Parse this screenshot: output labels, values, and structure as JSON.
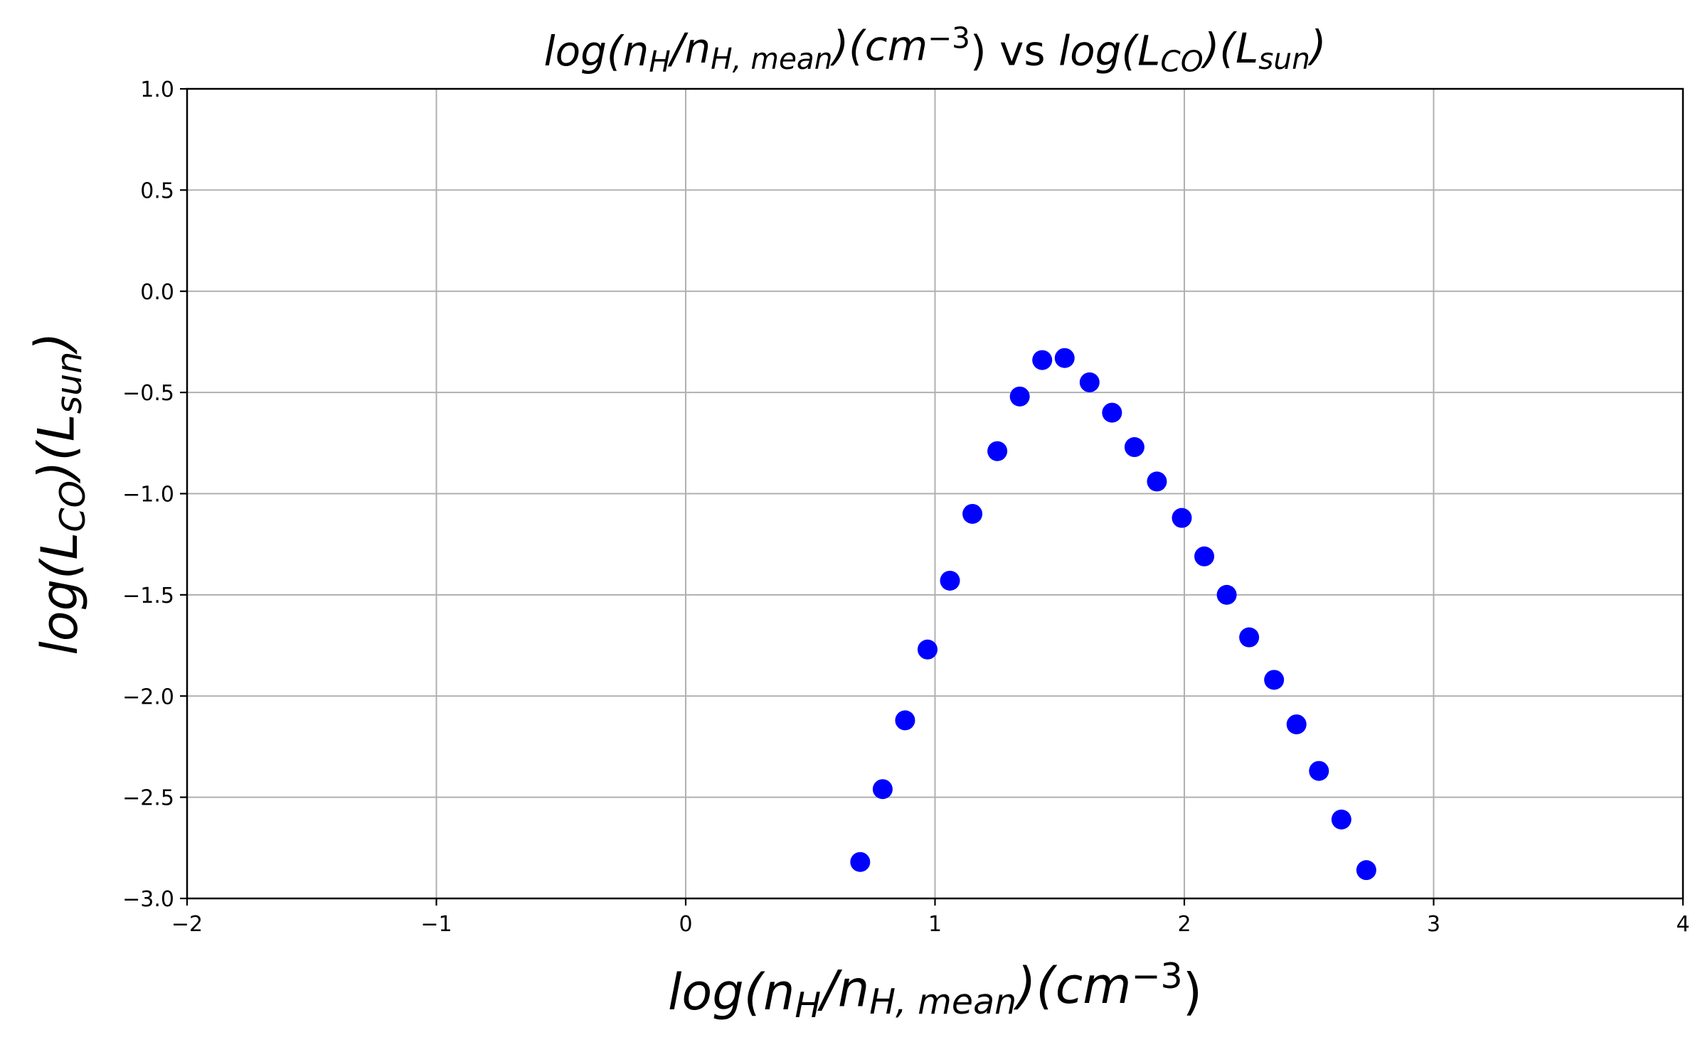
{
  "chart_data": {
    "type": "scatter",
    "title": {
      "left": [
        {
          "t": "log(n",
          "i": true
        },
        {
          "t": "H",
          "i": true,
          "sub": true
        },
        {
          "t": "/n",
          "i": true
        },
        {
          "t": "H, mean",
          "i": true,
          "sub": true
        },
        {
          "t": ")(cm",
          "i": true
        },
        {
          "t": "−3",
          "i": false,
          "sup": true
        },
        {
          "t": ")",
          "i": false
        }
      ],
      "middle": " vs ",
      "right": [
        {
          "t": "log(L",
          "i": true
        },
        {
          "t": "CO",
          "i": true,
          "sub": true
        },
        {
          "t": ")(L",
          "i": true
        },
        {
          "t": "sun",
          "i": true,
          "sub": true
        },
        {
          "t": ")",
          "i": true
        }
      ]
    },
    "xlabel": [
      {
        "t": "log(n",
        "i": true
      },
      {
        "t": "H",
        "i": true,
        "sub": true
      },
      {
        "t": "/n",
        "i": true
      },
      {
        "t": "H, mean",
        "i": true,
        "sub": true
      },
      {
        "t": ")(cm",
        "i": true
      },
      {
        "t": "−3",
        "i": false,
        "sup": true
      },
      {
        "t": ")",
        "i": false
      }
    ],
    "ylabel": [
      {
        "t": "log(L",
        "i": true
      },
      {
        "t": "CO",
        "i": true,
        "sub": true
      },
      {
        "t": ")(L",
        "i": true
      },
      {
        "t": "sun",
        "i": true,
        "sub": true
      },
      {
        "t": ")",
        "i": true
      }
    ],
    "xlim": [
      -2,
      4
    ],
    "ylim": [
      -3,
      1
    ],
    "xticks": [
      -2,
      -1,
      0,
      1,
      2,
      3,
      4
    ],
    "yticks": [
      -3.0,
      -2.5,
      -2.0,
      -1.5,
      -1.0,
      -0.5,
      0.0,
      0.5,
      1.0
    ],
    "xtick_labels": [
      "−2",
      "−1",
      "0",
      "1",
      "2",
      "3",
      "4"
    ],
    "ytick_labels": [
      "−3.0",
      "−2.5",
      "−2.0",
      "−1.5",
      "−1.0",
      "−0.5",
      "0.0",
      "0.5",
      "1.0"
    ],
    "grid": true,
    "marker_color": "#0000ff",
    "grid_color": "#b0b0b0",
    "series": [
      {
        "x": [
          0.7,
          0.79,
          0.88,
          0.97,
          1.06,
          1.15,
          1.25,
          1.34,
          1.43,
          1.52,
          1.62,
          1.71,
          1.8,
          1.89,
          1.99,
          2.08,
          2.17,
          2.26,
          2.36,
          2.45,
          2.54,
          2.63,
          2.73
        ],
        "y": [
          -2.82,
          -2.46,
          -2.12,
          -1.77,
          -1.43,
          -1.1,
          -0.79,
          -0.52,
          -0.34,
          -0.33,
          -0.45,
          -0.6,
          -0.77,
          -0.94,
          -1.12,
          -1.31,
          -1.5,
          -1.71,
          -1.92,
          -2.14,
          -2.37,
          -2.61,
          -2.86
        ]
      }
    ]
  }
}
